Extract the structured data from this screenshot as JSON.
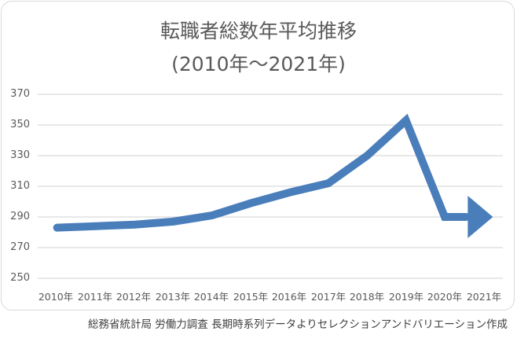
{
  "chart_data": {
    "type": "line",
    "title": "転職者総数年平均推移",
    "subtitle": "(2010年～2021年)",
    "xlabel": "",
    "ylabel": "",
    "categories": [
      "2010年",
      "2011年",
      "2012年",
      "2013年",
      "2014年",
      "2015年",
      "2016年",
      "2017年",
      "2018年",
      "2019年",
      "2020年",
      "2021年"
    ],
    "series": [
      {
        "name": "転職者総数",
        "values": [
          283,
          284,
          285,
          287,
          291,
          299,
          306,
          312,
          330,
          353,
          290,
          290
        ],
        "color": "#4a7ebb"
      }
    ],
    "ylim": [
      250,
      370
    ],
    "yticks": [
      370,
      350,
      330,
      310,
      290,
      270,
      250
    ],
    "grid": true,
    "legend": "none",
    "annotations": [
      "arrow marker at end of line (2021年)"
    ],
    "source_note": "総務省統計局 労働力調査 長期時系列データよりセレクションアンドバリエーション作成"
  },
  "title": {
    "line1": "転職者総数年平均推移",
    "line2": "(2010年～2021年)"
  },
  "yaxis": {
    "ticks": [
      "370",
      "350",
      "330",
      "310",
      "290",
      "270",
      "250"
    ]
  },
  "xaxis": {
    "ticks": [
      "2010年",
      "2011年",
      "2012年",
      "2013年",
      "2014年",
      "2015年",
      "2016年",
      "2017年",
      "2018年",
      "2019年",
      "2020年",
      "2021年"
    ]
  },
  "source": "総務省統計局 労働力調査 長期時系列データよりセレクションアンドバリエーション作成",
  "colors": {
    "line": "#4a7ebb",
    "grid": "#d9d9d9",
    "text": "#595959"
  }
}
